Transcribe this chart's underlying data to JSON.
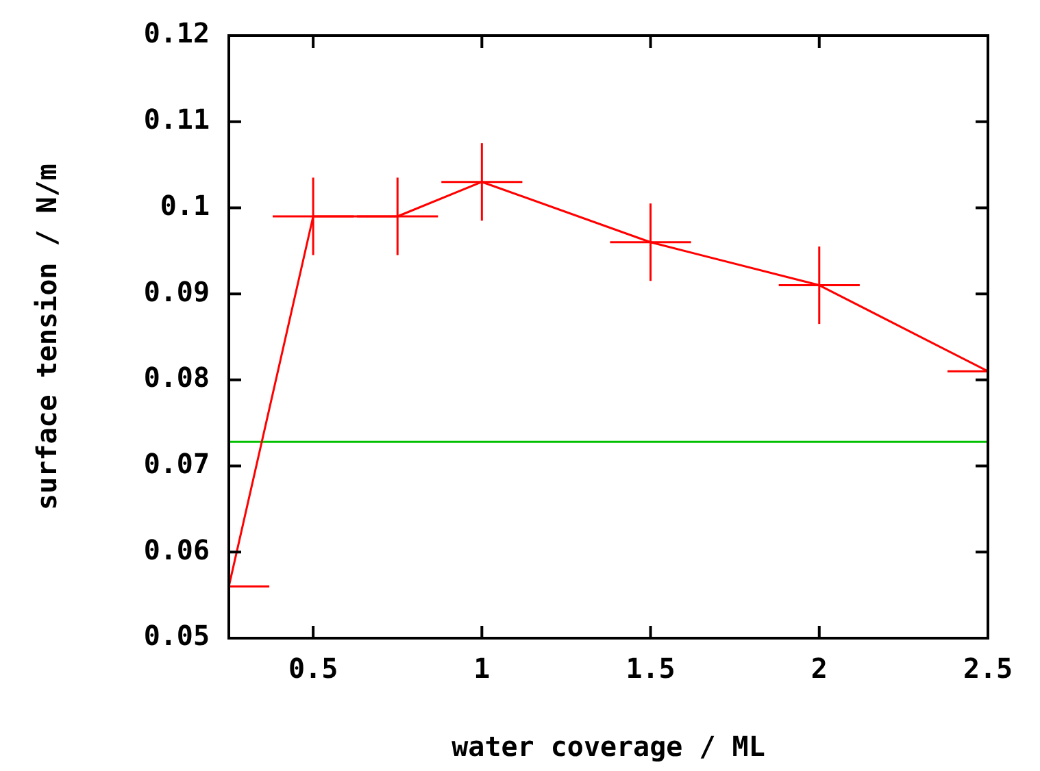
{
  "chart_data": {
    "type": "line",
    "xlabel": "water coverage / ML",
    "ylabel": "surface tension / N/m",
    "x": [
      0.25,
      0.5,
      0.75,
      1,
      1.5,
      2,
      2.5
    ],
    "series": [
      {
        "color": "#ff0000",
        "values": [
          0.056,
          0.099,
          0.099,
          0.103,
          0.096,
          0.091,
          0.081
        ],
        "errors": [
          null,
          0.0045,
          0.0045,
          0.0045,
          0.0045,
          0.0045,
          null
        ],
        "xerrors": [
          [
            0.25,
            0.37
          ],
          0.12,
          0.12,
          0.12,
          0.12,
          0.12,
          [
            2.38,
            2.5
          ]
        ]
      }
    ],
    "marker": "none",
    "line_style": "solid",
    "grid": false,
    "legend": false,
    "xlim": [
      0.25,
      2.5
    ],
    "xticks": [
      {
        "value": 0.25,
        "label": null
      },
      0.5,
      1,
      1.5,
      2,
      2.5
    ],
    "ylim": [
      0.05,
      0.12
    ],
    "yticks": [
      0.05,
      0.06,
      0.07,
      0.08,
      0.09,
      0.1,
      0.11,
      0.12
    ],
    "ref_lines": [
      {
        "axis": "y",
        "value": 0.0728,
        "color": "#00c000"
      }
    ]
  }
}
